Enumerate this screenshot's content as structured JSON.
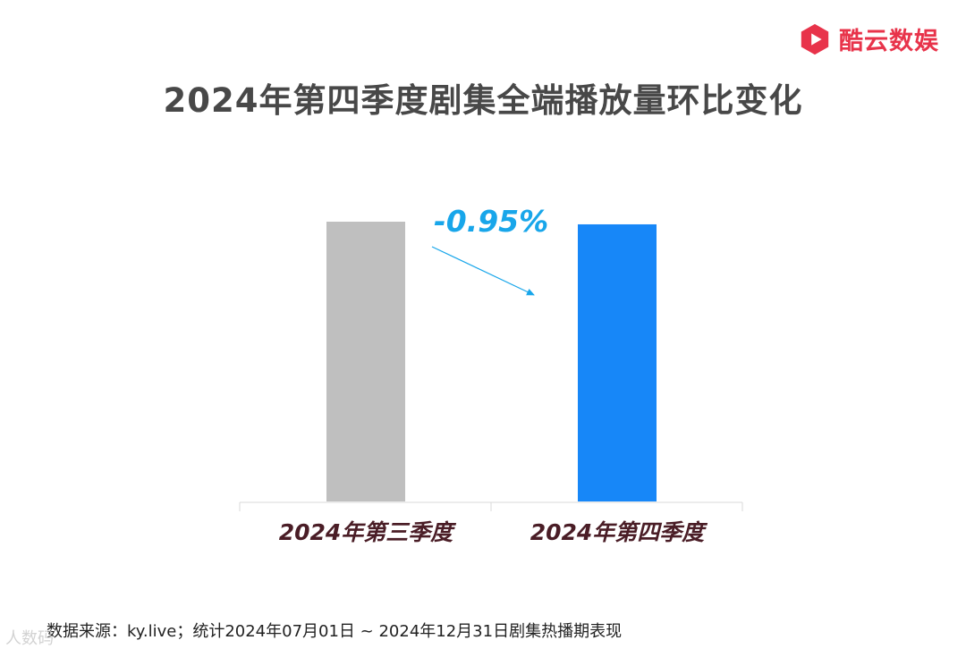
{
  "brand": {
    "name": "酷云数娱",
    "icon": "play-hexagon-icon",
    "color": "#e8334a"
  },
  "chart_data": {
    "type": "bar",
    "title": "2024年第四季度剧集全端播放量环比变化",
    "categories": [
      "2024年第三季度",
      "2024年第四季度"
    ],
    "values": [
      100,
      99.05
    ],
    "colors": [
      "#bfbfbf",
      "#1787f8"
    ],
    "change_label": "-0.95%",
    "change_color": "#18a6ea",
    "xlabel": "",
    "ylabel": "",
    "ylim": [
      0,
      100
    ],
    "grid": false,
    "legend": "none"
  },
  "footer": {
    "source": "数据来源：ky.live；统计2024年07月01日 ~  2024年12月31日剧集热播期表现",
    "watermark": "人数码"
  }
}
